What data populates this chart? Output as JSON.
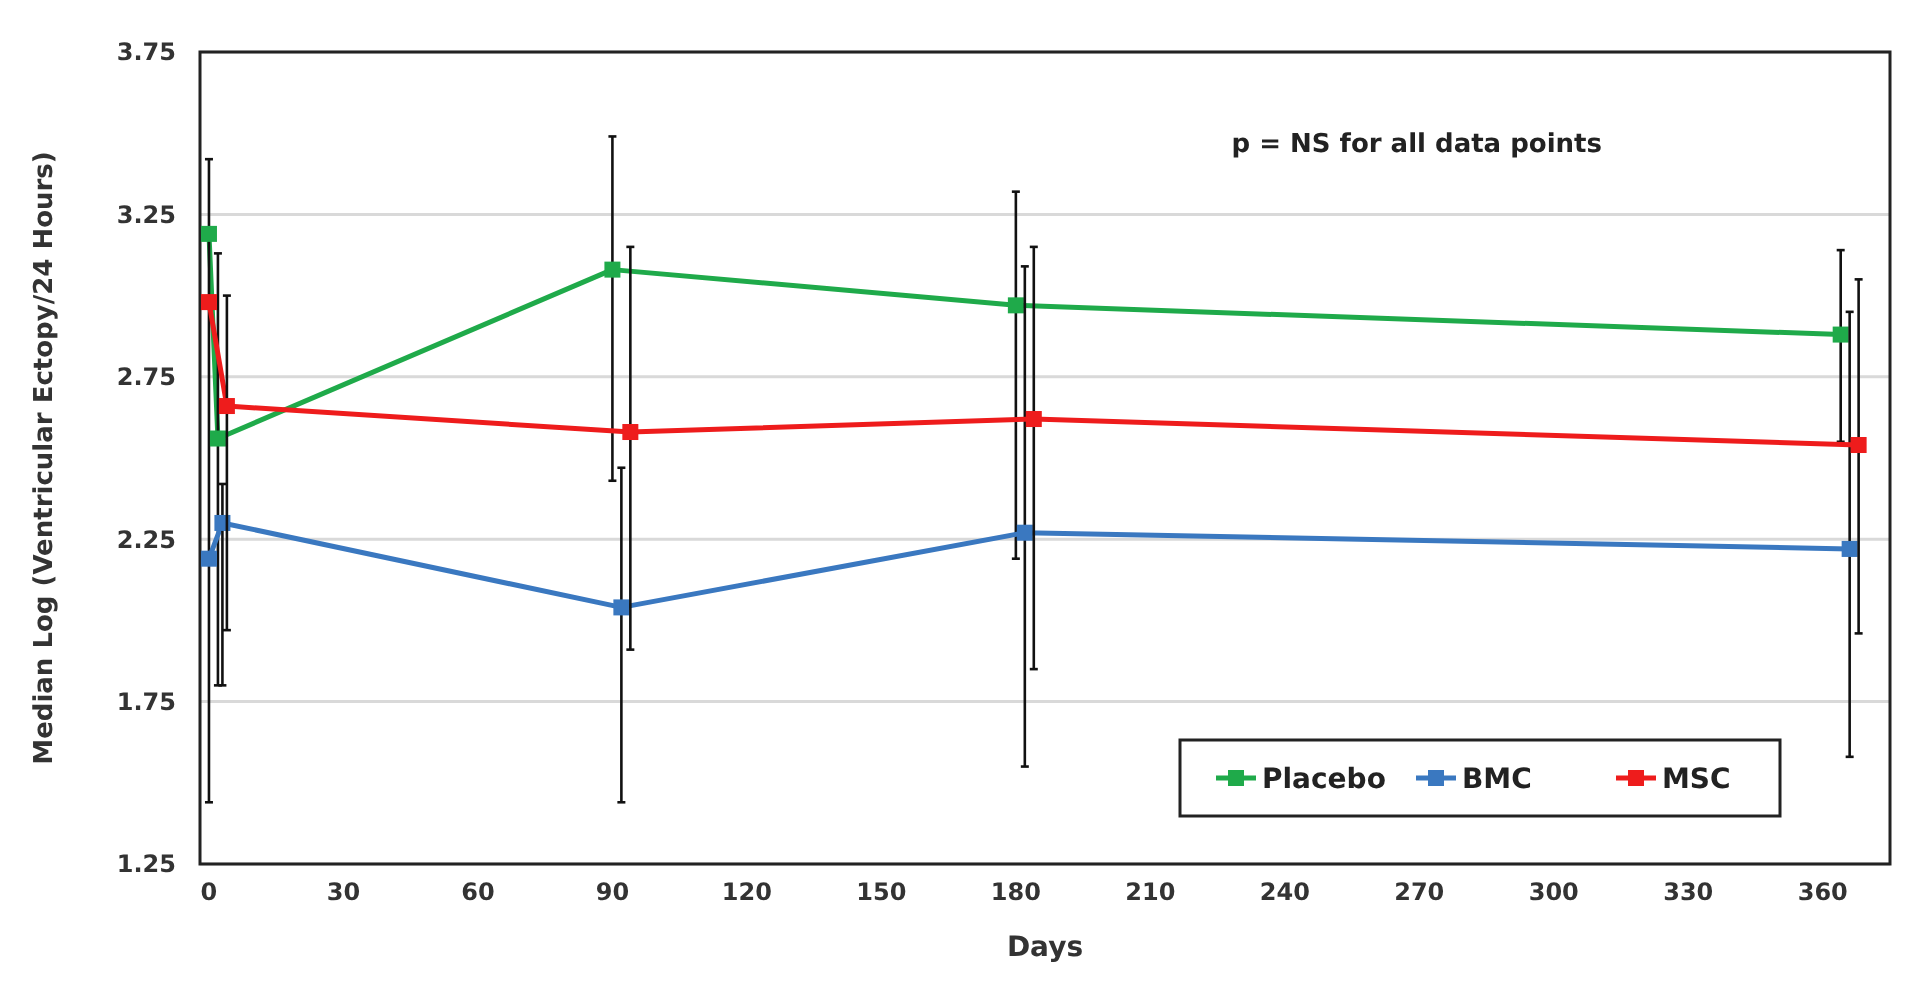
{
  "chart_data": {
    "type": "line",
    "xlabel": "Days",
    "ylabel": "Median Log (Ventricular Ectopy/24 Hours)",
    "annotations": [
      "p = NS for all data points"
    ],
    "xlim": [
      -2,
      375
    ],
    "xticks": [
      0,
      30,
      60,
      90,
      120,
      150,
      180,
      210,
      240,
      270,
      300,
      330,
      360
    ],
    "ylim": [
      1.25,
      3.75
    ],
    "yticks": [
      1.25,
      1.75,
      2.25,
      2.75,
      3.25,
      3.75
    ],
    "grid": "y",
    "legend": "bottom right",
    "marker": "square",
    "line_style": "solid",
    "series": [
      {
        "name": "Placebo",
        "color": "#1faa4a",
        "x": [
          0,
          2,
          90,
          180,
          364
        ],
        "values": [
          3.19,
          2.56,
          3.08,
          2.97,
          2.88
        ],
        "errors": [
          [
            1.44,
            3.42
          ],
          [
            1.8,
            3.13
          ],
          [
            2.43,
            3.49
          ],
          [
            2.19,
            3.32
          ],
          [
            2.55,
            3.14
          ]
        ]
      },
      {
        "name": "BMC",
        "color": "#3a78c0",
        "x": [
          0,
          3,
          92,
          182,
          366
        ],
        "values": [
          2.19,
          2.3,
          2.04,
          2.27,
          2.22
        ],
        "errors": [
          null,
          [
            1.8,
            2.42
          ],
          [
            1.44,
            2.47
          ],
          [
            1.55,
            3.09
          ],
          [
            1.58,
            2.95
          ]
        ]
      },
      {
        "name": "MSC",
        "color": "#ee1c1c",
        "x": [
          0,
          4,
          94,
          184,
          368
        ],
        "values": [
          2.98,
          2.66,
          2.58,
          2.62,
          2.54
        ],
        "errors": [
          null,
          [
            1.97,
            3.0
          ],
          [
            1.91,
            3.15
          ],
          [
            1.85,
            3.15
          ],
          [
            1.96,
            3.05
          ]
        ]
      }
    ]
  }
}
